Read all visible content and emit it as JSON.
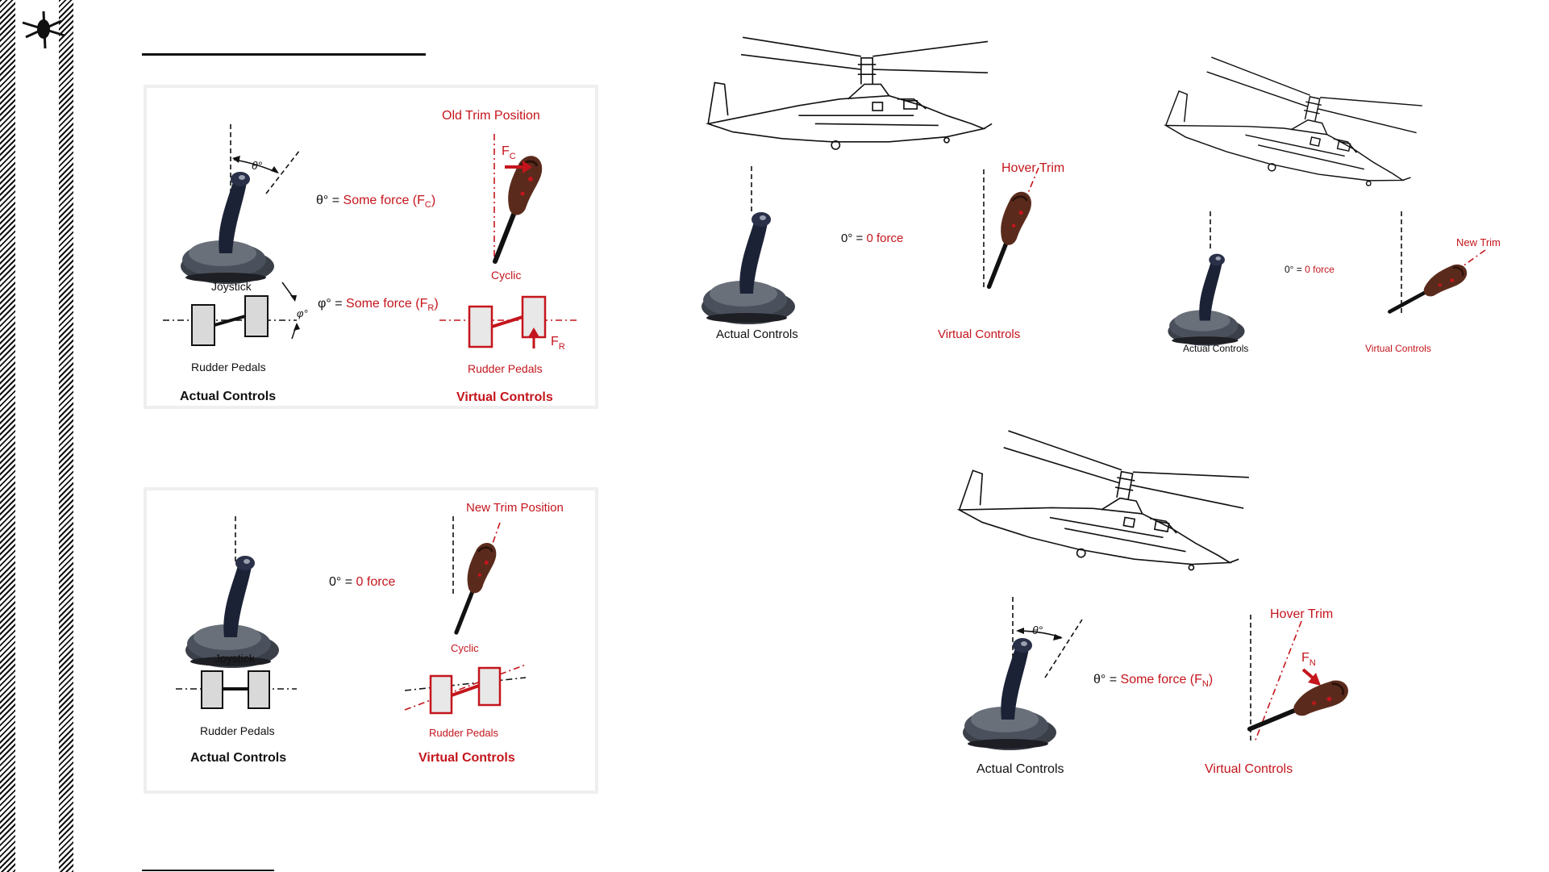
{
  "colors": {
    "accent_red": "#c4151c",
    "stripe": "#111111",
    "panel_border": "#efefef"
  },
  "sidebar": {
    "logo_icon": "helicopter-silhouette-icon"
  },
  "panel_old_trim": {
    "old_trim_position": "Old Trim Position",
    "theta_label": "θ°",
    "fc_eq_prefix": "θ° = ",
    "fc_eq_value": "Some force (F",
    "fc_sub": "C",
    "fc_close": ")",
    "fc_mark": "F",
    "fc_mark_sub": "C",
    "phi_eq_prefix": "φ° = ",
    "phi_eq_value": "Some force (F",
    "phi_sub": "R",
    "phi_close": ")",
    "fr_mark": "F",
    "fr_mark_sub": "R",
    "joystick": "Joystick",
    "cyclic": "Cyclic",
    "rudder_pedals_actual": "Rudder Pedals",
    "rudder_pedals_virtual": "Rudder Pedals",
    "actual_controls": "Actual Controls",
    "virtual_controls": "Virtual Controls"
  },
  "panel_new_trim": {
    "new_trim_position": "New Trim Position",
    "eq_prefix": "0° = ",
    "eq_value": "0 force",
    "joystick": "Joystick",
    "cyclic": "Cyclic",
    "rudder_pedals_actual": "Rudder Pedals",
    "rudder_pedals_virtual": "Rudder Pedals",
    "actual_controls": "Actual Controls",
    "virtual_controls": "Virtual Controls"
  },
  "panel_hover": {
    "hover_trim": "Hover Trim",
    "eq_prefix": "0° = ",
    "eq_value": "0 force",
    "actual_controls": "Actual Controls",
    "virtual_controls": "Virtual Controls"
  },
  "panel_new_trim_small": {
    "new_trim": "New Trim",
    "eq_prefix": "0° = ",
    "eq_value": "0 force",
    "actual_controls": "Actual Controls",
    "virtual_controls": "Virtual Controls"
  },
  "panel_hover_force": {
    "hover_trim": "Hover Trim",
    "theta_label": "θ°",
    "eq_prefix": "θ° = ",
    "eq_value": "Some force (F",
    "eq_sub": "N",
    "eq_close": ")",
    "fn_mark": "F",
    "fn_mark_sub": "N",
    "actual_controls": "Actual Controls",
    "virtual_controls": "Virtual Controls"
  }
}
